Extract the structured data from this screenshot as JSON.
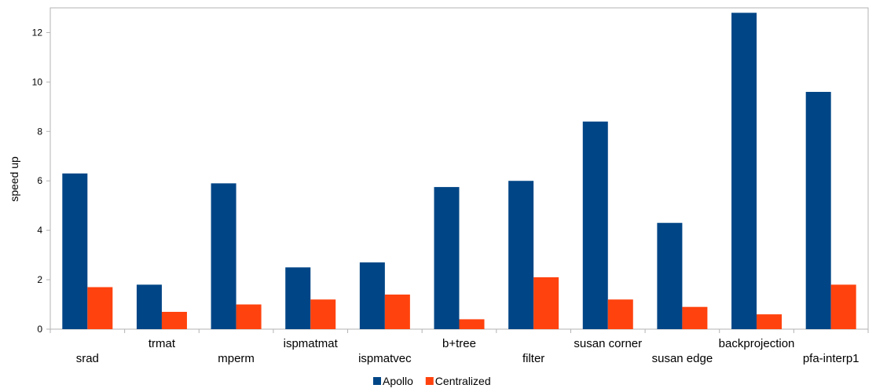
{
  "chart_data": {
    "type": "bar",
    "title": "",
    "xlabel": "",
    "ylabel": "speed up",
    "ylim": [
      0,
      13
    ],
    "yticks": [
      0,
      2,
      4,
      6,
      8,
      10,
      12
    ],
    "grid": false,
    "legend_position": "bottom",
    "categories": [
      "srad",
      "trmat",
      "mperm",
      "ispmatmat",
      "ispmatvec",
      "b+tree",
      "filter",
      "susan corner",
      "susan edge",
      "backprojection",
      "pfa-interp1"
    ],
    "series": [
      {
        "name": "Apollo",
        "color": "#004586",
        "values": [
          6.3,
          1.8,
          5.9,
          2.5,
          2.7,
          5.75,
          6.0,
          8.4,
          4.3,
          12.8,
          9.6
        ]
      },
      {
        "name": "Centralized",
        "color": "#ff420e",
        "values": [
          1.7,
          0.7,
          1.0,
          1.2,
          1.4,
          0.4,
          2.1,
          1.2,
          0.9,
          0.6,
          1.8
        ]
      }
    ]
  }
}
